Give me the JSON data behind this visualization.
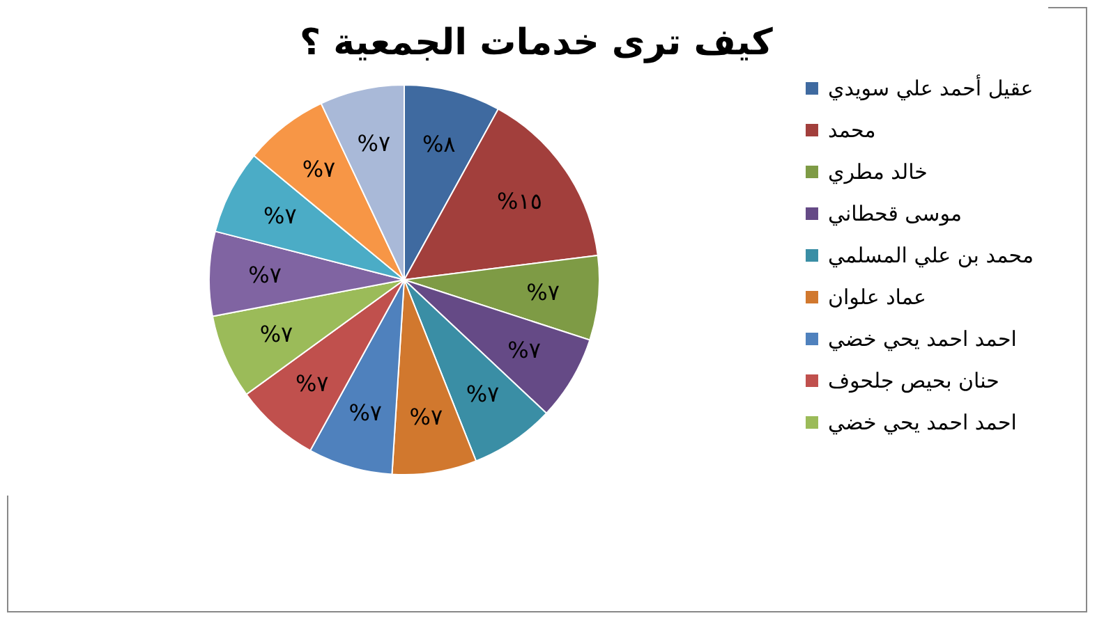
{
  "chart_data": {
    "type": "pie",
    "title": "كيف ترى خدمات الجمعية ؟",
    "categories": [
      "عقيل أحمد علي سويدي",
      "محمد",
      "خالد مطري",
      "موسى قحطاني",
      "محمد بن علي المسلمي",
      "عماد علوان",
      "احمد احمد يحي خضي",
      "حنان بحيص جلحوف",
      "احمد احمد يحي خضي",
      null,
      null,
      null,
      null
    ],
    "values": [
      8,
      15,
      7,
      7,
      7,
      7,
      7,
      7,
      7,
      7,
      7,
      7,
      7
    ],
    "value_labels": [
      "%٨",
      "%١٥",
      "%٧",
      "%٧",
      "%٧",
      "%٧",
      "%٧",
      "%٧",
      "%٧",
      "%٧",
      "%٧",
      "%٧",
      "%٧"
    ],
    "colors": [
      "#3f6aa0",
      "#a23f3c",
      "#7e9b45",
      "#654a86",
      "#3a8ea5",
      "#d1782e",
      "#4f81bd",
      "#c0504d",
      "#9bbb59",
      "#8064a2",
      "#4bacc6",
      "#f79646",
      "#a9b9d8"
    ],
    "legend": "right"
  }
}
